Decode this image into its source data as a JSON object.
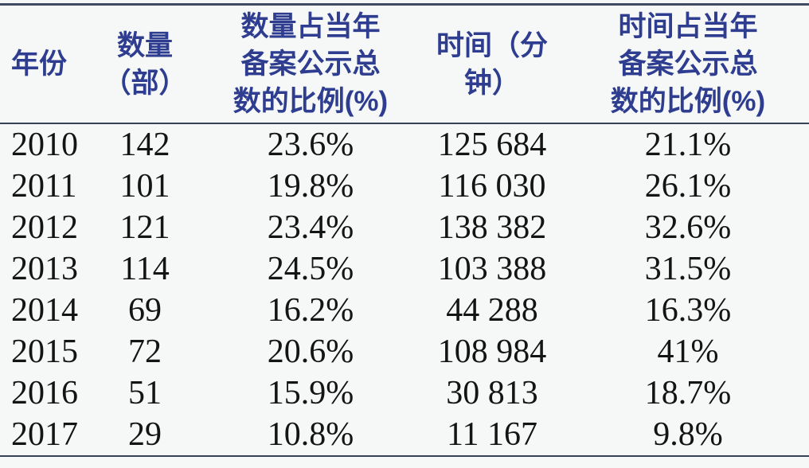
{
  "table": {
    "headers": [
      "年份",
      "数量（部）",
      "数量占当年\n备案公示总\n数的比例(%)",
      "时间（分钟）",
      "时间占当年\n备案公示总\n数的比例(%)"
    ],
    "rows": [
      {
        "year": "2010",
        "count": "142",
        "count_pct": "23.6%",
        "minutes": "125 684",
        "minutes_pct": "21.1%"
      },
      {
        "year": "2011",
        "count": "101",
        "count_pct": "19.8%",
        "minutes": "116 030",
        "minutes_pct": "26.1%"
      },
      {
        "year": "2012",
        "count": "121",
        "count_pct": "23.4%",
        "minutes": "138 382",
        "minutes_pct": "32.6%"
      },
      {
        "year": "2013",
        "count": "114",
        "count_pct": "24.5%",
        "minutes": "103 388",
        "minutes_pct": "31.5%"
      },
      {
        "year": "2014",
        "count": "69",
        "count_pct": "16.2%",
        "minutes": "44 288",
        "minutes_pct": "16.3%"
      },
      {
        "year": "2015",
        "count": "72",
        "count_pct": "20.6%",
        "minutes": "108 984",
        "minutes_pct": "41%"
      },
      {
        "year": "2016",
        "count": "51",
        "count_pct": "15.9%",
        "minutes": "30 813",
        "minutes_pct": "18.7%"
      },
      {
        "year": "2017",
        "count": "29",
        "count_pct": "10.8%",
        "minutes": "11 167",
        "minutes_pct": "9.8%"
      }
    ]
  },
  "colors": {
    "background": "#f5f8f7",
    "header_text": "#2e3d8f",
    "body_text": "#141414",
    "rule": "#364257"
  },
  "chart_data": {
    "type": "table",
    "columns": [
      "年份",
      "数量（部）",
      "数量占当年备案公示总数的比例(%)",
      "时间（分钟）",
      "时间占当年备案公示总数的比例(%)"
    ],
    "years": [
      2010,
      2011,
      2012,
      2013,
      2014,
      2015,
      2016,
      2017
    ],
    "series": [
      {
        "name": "数量（部）",
        "values": [
          142,
          101,
          121,
          114,
          69,
          72,
          51,
          29
        ]
      },
      {
        "name": "数量占当年备案公示总数的比例(%)",
        "values": [
          23.6,
          19.8,
          23.4,
          24.5,
          16.2,
          20.6,
          15.9,
          10.8
        ]
      },
      {
        "name": "时间（分钟）",
        "values": [
          125684,
          116030,
          138382,
          103388,
          44288,
          108984,
          30813,
          11167
        ]
      },
      {
        "name": "时间占当年备案公示总数的比例(%)",
        "values": [
          21.1,
          26.1,
          32.6,
          31.5,
          16.3,
          41,
          18.7,
          9.8
        ]
      }
    ],
    "title": "",
    "layout": "three-rule booktabs table, navy sans headers, black serif numerals"
  }
}
